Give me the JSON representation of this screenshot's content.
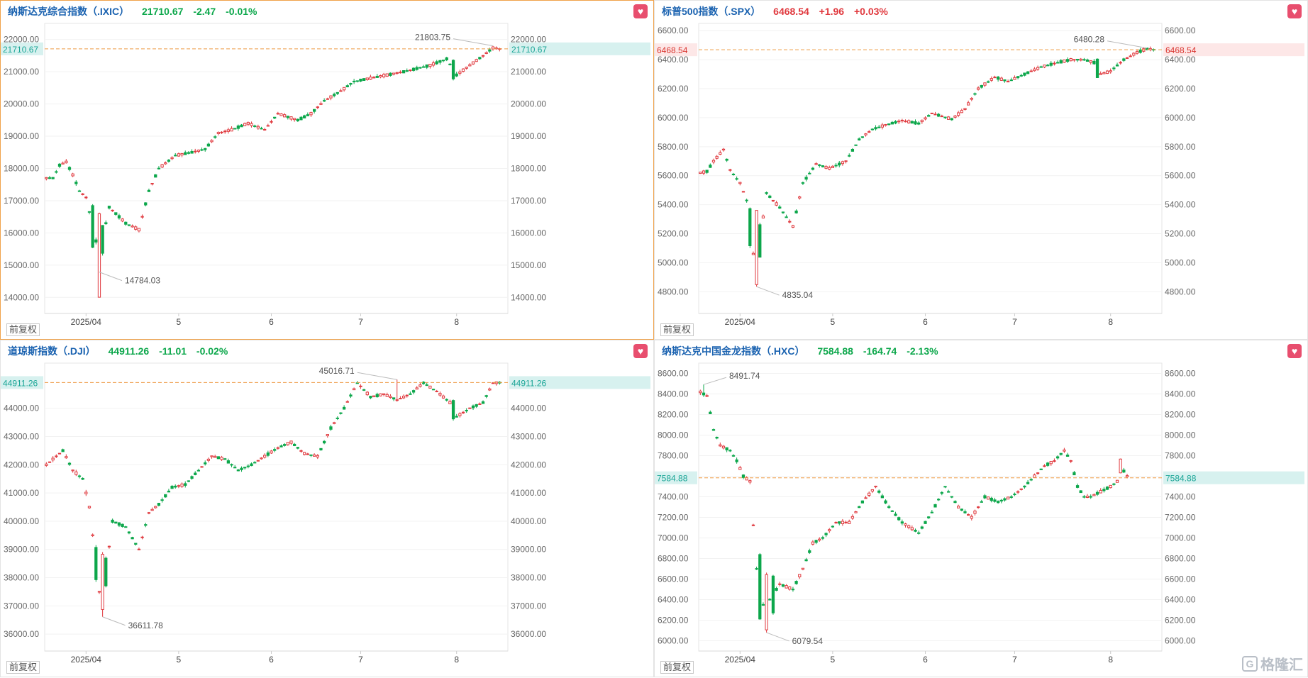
{
  "colors": {
    "up": "#e0393e",
    "down": "#0ca74b",
    "title": "#1a62b0",
    "ref_line": "#ee9a43"
  },
  "fq_label": "前复权",
  "watermark": {
    "text": "格隆汇",
    "icon": "glh-logo-icon"
  },
  "chart_data": [
    {
      "type": "candlestick",
      "name": "纳斯达克综合指数（.IXIC）",
      "price": "21710.67",
      "change": "-2.47",
      "pct": "-0.01%",
      "direction": "down",
      "ylim": [
        13500,
        22500
      ],
      "yticks": [
        14000,
        15000,
        16000,
        17000,
        18000,
        19000,
        20000,
        21000,
        22000
      ],
      "ytick_labels": [
        "14000.00",
        "15000.00",
        "16000.00",
        "17000.00",
        "18000.00",
        "19000.00",
        "20000.00",
        "21000.00",
        "22000.00"
      ],
      "xtick_labels": [
        {
          "label": "2025/04",
          "index": 12
        },
        {
          "label": "5",
          "index": 40
        },
        {
          "label": "6",
          "index": 68
        },
        {
          "label": "7",
          "index": 95
        },
        {
          "label": "8",
          "index": 124
        }
      ],
      "ref_value": 21710.67,
      "ref_label": "21710.67",
      "high_label": "21803.75",
      "low_label": "14784.03",
      "anchors": [
        [
          0,
          17700
        ],
        [
          2,
          17700
        ],
        [
          4,
          18100
        ],
        [
          6,
          18200
        ],
        [
          8,
          17800
        ],
        [
          10,
          17300
        ],
        [
          12,
          17100
        ],
        [
          16,
          15300
        ],
        [
          19,
          16800
        ],
        [
          24,
          16300
        ],
        [
          28,
          16100
        ],
        [
          31,
          17300
        ],
        [
          34,
          18000
        ],
        [
          39,
          18400
        ],
        [
          44,
          18500
        ],
        [
          48,
          18600
        ],
        [
          52,
          19100
        ],
        [
          56,
          19200
        ],
        [
          61,
          19400
        ],
        [
          66,
          19200
        ],
        [
          70,
          19700
        ],
        [
          76,
          19500
        ],
        [
          80,
          19700
        ],
        [
          84,
          20100
        ],
        [
          89,
          20400
        ],
        [
          93,
          20700
        ],
        [
          98,
          20800
        ],
        [
          103,
          20900
        ],
        [
          108,
          21000
        ],
        [
          116,
          21200
        ],
        [
          121,
          21400
        ],
        [
          124,
          20900
        ],
        [
          128,
          21200
        ],
        [
          132,
          21500
        ],
        [
          135,
          21740
        ],
        [
          137,
          21710
        ]
      ],
      "low_point": [
        16,
        14784.03
      ],
      "high_point": [
        135,
        21803.75
      ],
      "shocks": [
        [
          14,
          -0.045
        ],
        [
          16,
          0.09
        ],
        [
          17,
          -0.03
        ],
        [
          123,
          -0.02
        ]
      ]
    },
    {
      "type": "candlestick",
      "name": "标普500指数（.SPX）",
      "price": "6468.54",
      "change": "+1.96",
      "pct": "+0.03%",
      "direction": "up",
      "ylim": [
        4650,
        6650
      ],
      "yticks": [
        4800,
        5000,
        5200,
        5400,
        5600,
        5800,
        6000,
        6200,
        6400,
        6600
      ],
      "ytick_labels": [
        "4800.00",
        "5000.00",
        "5200.00",
        "5400.00",
        "5600.00",
        "5800.00",
        "6000.00",
        "6200.00",
        "6400.00",
        "6600.00"
      ],
      "xtick_labels": [
        {
          "label": "2025/04",
          "index": 12
        },
        {
          "label": "5",
          "index": 40
        },
        {
          "label": "6",
          "index": 68
        },
        {
          "label": "7",
          "index": 95
        },
        {
          "label": "8",
          "index": 124
        }
      ],
      "ref_value": 6468.54,
      "ref_label": "6468.54",
      "high_label": "6480.28",
      "low_label": "4835.04",
      "anchors": [
        [
          0,
          5620
        ],
        [
          2,
          5630
        ],
        [
          4,
          5700
        ],
        [
          7,
          5780
        ],
        [
          9,
          5640
        ],
        [
          12,
          5550
        ],
        [
          14,
          5430
        ],
        [
          16,
          5060
        ],
        [
          18,
          5150
        ],
        [
          20,
          5480
        ],
        [
          24,
          5380
        ],
        [
          28,
          5250
        ],
        [
          31,
          5550
        ],
        [
          35,
          5680
        ],
        [
          39,
          5650
        ],
        [
          44,
          5700
        ],
        [
          48,
          5850
        ],
        [
          52,
          5920
        ],
        [
          56,
          5950
        ],
        [
          61,
          5980
        ],
        [
          66,
          5960
        ],
        [
          70,
          6030
        ],
        [
          76,
          5990
        ],
        [
          80,
          6060
        ],
        [
          84,
          6200
        ],
        [
          89,
          6280
        ],
        [
          93,
          6250
        ],
        [
          98,
          6300
        ],
        [
          103,
          6350
        ],
        [
          108,
          6380
        ],
        [
          112,
          6400
        ],
        [
          116,
          6400
        ],
        [
          119,
          6380
        ],
        [
          121,
          6300
        ],
        [
          124,
          6320
        ],
        [
          128,
          6400
        ],
        [
          132,
          6450
        ],
        [
          135,
          6475
        ],
        [
          137,
          6470
        ]
      ],
      "low_point": [
        17,
        4835.04
      ],
      "high_point": [
        135,
        6480.28
      ],
      "shocks": [
        [
          15,
          -0.04
        ],
        [
          17,
          0.08
        ],
        [
          18,
          -0.035
        ],
        [
          120,
          -0.02
        ]
      ]
    },
    {
      "type": "candlestick",
      "name": "道琼斯指数（.DJI）",
      "price": "44911.26",
      "change": "-11.01",
      "pct": "-0.02%",
      "direction": "down",
      "ylim": [
        35400,
        45600
      ],
      "yticks": [
        36000,
        37000,
        38000,
        39000,
        40000,
        41000,
        42000,
        43000,
        44000
      ],
      "ytick_labels": [
        "36000.00",
        "37000.00",
        "38000.00",
        "39000.00",
        "40000.00",
        "41000.00",
        "42000.00",
        "43000.00",
        "44000.00"
      ],
      "xtick_labels": [
        {
          "label": "2025/04",
          "index": 12
        },
        {
          "label": "5",
          "index": 40
        },
        {
          "label": "6",
          "index": 68
        },
        {
          "label": "7",
          "index": 95
        },
        {
          "label": "8",
          "index": 124
        }
      ],
      "ref_value": 44911.26,
      "ref_label": "44911.26",
      "high_label": "45016.71",
      "low_label": "36611.78",
      "anchors": [
        [
          0,
          42000
        ],
        [
          3,
          42300
        ],
        [
          5,
          42500
        ],
        [
          8,
          41800
        ],
        [
          11,
          41500
        ],
        [
          13,
          40500
        ],
        [
          16,
          37500
        ],
        [
          18,
          38200
        ],
        [
          20,
          40000
        ],
        [
          24,
          39800
        ],
        [
          28,
          39000
        ],
        [
          31,
          40300
        ],
        [
          34,
          40600
        ],
        [
          38,
          41200
        ],
        [
          42,
          41300
        ],
        [
          46,
          41800
        ],
        [
          50,
          42300
        ],
        [
          54,
          42200
        ],
        [
          58,
          41800
        ],
        [
          62,
          42000
        ],
        [
          66,
          42300
        ],
        [
          70,
          42600
        ],
        [
          74,
          42800
        ],
        [
          78,
          42400
        ],
        [
          82,
          42300
        ],
        [
          86,
          43300
        ],
        [
          90,
          44000
        ],
        [
          94,
          44900
        ],
        [
          98,
          44400
        ],
        [
          102,
          44500
        ],
        [
          106,
          44300
        ],
        [
          110,
          44500
        ],
        [
          114,
          44900
        ],
        [
          118,
          44600
        ],
        [
          122,
          44200
        ],
        [
          124,
          43700
        ],
        [
          128,
          44000
        ],
        [
          132,
          44200
        ],
        [
          135,
          44900
        ],
        [
          137,
          44910
        ]
      ],
      "low_point": [
        17,
        36611.78
      ],
      "high_point": [
        106,
        45016.71
      ],
      "shocks": [
        [
          15,
          -0.035
        ],
        [
          17,
          0.06
        ],
        [
          18,
          -0.03
        ],
        [
          123,
          -0.02
        ]
      ]
    },
    {
      "type": "candlestick",
      "name": "纳斯达克中国金龙指数（.HXC）",
      "price": "7584.88",
      "change": "-164.74",
      "pct": "-2.13%",
      "direction": "down",
      "ylim": [
        5900,
        8700
      ],
      "yticks": [
        6000,
        6200,
        6400,
        6600,
        6800,
        7000,
        7200,
        7400,
        7600,
        7800,
        8000,
        8200,
        8400,
        8600
      ],
      "ytick_labels": [
        "6000.00",
        "6200.00",
        "6400.00",
        "6600.00",
        "6800.00",
        "7000.00",
        "7200.00",
        "7400.00",
        "7600.00",
        "7800.00",
        "8000.00",
        "8200.00",
        "8400.00",
        "8600.00"
      ],
      "xtick_labels": [
        {
          "label": "2025/04",
          "index": 12
        },
        {
          "label": "5",
          "index": 40
        },
        {
          "label": "6",
          "index": 68
        },
        {
          "label": "7",
          "index": 95
        },
        {
          "label": "8",
          "index": 124
        }
      ],
      "ref_value": 7584.88,
      "ref_label": "7584.88",
      "high_label": "8491.74",
      "low_label": "6079.54",
      "anchors": [
        [
          0,
          8420
        ],
        [
          2,
          8380
        ],
        [
          4,
          8050
        ],
        [
          6,
          7900
        ],
        [
          9,
          7850
        ],
        [
          11,
          7750
        ],
        [
          13,
          7600
        ],
        [
          15,
          7550
        ],
        [
          17,
          6700
        ],
        [
          19,
          6350
        ],
        [
          21,
          6400
        ],
        [
          24,
          6550
        ],
        [
          28,
          6500
        ],
        [
          31,
          6700
        ],
        [
          34,
          6950
        ],
        [
          37,
          7000
        ],
        [
          41,
          7150
        ],
        [
          45,
          7150
        ],
        [
          49,
          7350
        ],
        [
          53,
          7500
        ],
        [
          57,
          7300
        ],
        [
          61,
          7150
        ],
        [
          66,
          7050
        ],
        [
          70,
          7250
        ],
        [
          74,
          7500
        ],
        [
          78,
          7300
        ],
        [
          82,
          7200
        ],
        [
          86,
          7400
        ],
        [
          90,
          7350
        ],
        [
          94,
          7400
        ],
        [
          98,
          7500
        ],
        [
          101,
          7600
        ],
        [
          104,
          7700
        ],
        [
          107,
          7750
        ],
        [
          110,
          7850
        ],
        [
          112,
          7750
        ],
        [
          114,
          7500
        ],
        [
          116,
          7400
        ],
        [
          118,
          7400
        ],
        [
          121,
          7450
        ],
        [
          124,
          7500
        ],
        [
          126,
          7550
        ],
        [
          127,
          7700
        ],
        [
          129,
          7600
        ]
      ],
      "low_point": [
        20,
        6079.54
      ],
      "high_point": [
        1,
        8491.74
      ],
      "shocks": [
        [
          18,
          -0.07
        ],
        [
          20,
          0.06
        ],
        [
          22,
          -0.04
        ],
        [
          127,
          0.015
        ]
      ]
    }
  ]
}
